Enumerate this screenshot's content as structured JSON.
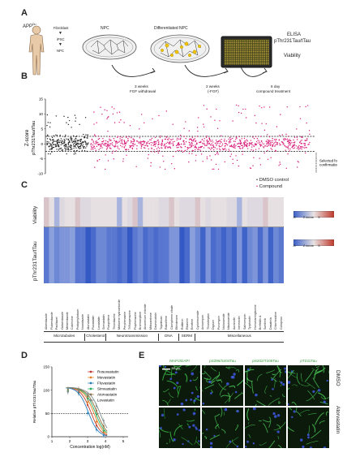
{
  "panels": {
    "A": {
      "label": "A",
      "person_label": "APP",
      "person_sup": "Du",
      "steps": [
        "Fibroblast",
        "iPSC",
        "NPC"
      ],
      "dish1_label": "NPC",
      "dish2_label": "Differentiated NPC",
      "plate_title1": "ELISA",
      "plate_title2": "pThr231Tau/tTau",
      "plate_title3": "Viability",
      "arrow1": [
        "3 weeks",
        "FGF withdrawal"
      ],
      "arrow2": [
        "2 weeks",
        "(-FGF)"
      ],
      "arrow3": [
        "6 day",
        "compound treatment"
      ]
    },
    "B": {
      "label": "B",
      "ylabel1": "Z-score",
      "ylabel2": "pThr231Tau/tTau",
      "yticks": [
        "15",
        "10",
        "5",
        "0",
        "-5",
        "-10"
      ],
      "selected_note": [
        "Selected for",
        "confirmation"
      ]
    },
    "C": {
      "label": "C",
      "legend": [
        {
          "label": "DMSO control",
          "color": "#222222"
        },
        {
          "label": "Compound",
          "color": "#d81b7a"
        }
      ],
      "row1_label": "Viability",
      "row2_label": "pThr231Tau/tTau",
      "scale1": {
        "min": "-5",
        "mid": "Z-score",
        "max": "5"
      },
      "scale2": {
        "min": "-5",
        "mid": "Z-score",
        "max": "5"
      },
      "compounds": [
        "Albendazole",
        "Flubendazole",
        "Paclitaxel",
        "Oxibendazole",
        "Mebendazole",
        "Colchicine",
        "Podophyllotoxin",
        "Nocodazole",
        "Atorvastatin",
        "Fluvastatin",
        "Lovastatin",
        "Simvastatin",
        "Fluspirilene",
        "Thioridazine",
        "Metixene hydrochloride",
        "Perphenazine",
        "Trifluoperazine",
        "Fluphenazine",
        "Bromocriptine",
        "Alcuronium chloride",
        "Mitoxantrone",
        "Daunorubicin",
        "Topotecan",
        "Raloxifene",
        "Clomiphene citrate",
        "Ethisterone",
        "Rottlerin",
        "Ribavirin",
        "Emetine",
        "Cycloheximide",
        "Anisomycin",
        "Thiostrepton",
        "Digoxin",
        "Puromycin",
        "Niclosamide",
        "Nitazoxanide",
        "Auranofin",
        "Ivermectin",
        "Salinomycin",
        "Tyrphostin",
        "Homoharringtonine",
        "Brefeldin A",
        "Sunitinib",
        "Dasatinib",
        "Chlorhexidine",
        "Ciclopirox"
      ],
      "categories": [
        "Microtubules",
        "Cholesterol",
        "Neurotransmission",
        "DNA",
        "SERM",
        "Miscellaneous"
      ]
    },
    "D": {
      "label": "D",
      "ylabel": "Relative pThr231Tau/tTau",
      "xlabel": "Concentration log(nM)",
      "yticks": [
        "150",
        "100",
        "50",
        "0"
      ],
      "xticks": [
        "1",
        "2",
        "3",
        "4",
        "5"
      ],
      "legend": [
        {
          "name": "Rosuvastatin",
          "color": "#c0392b"
        },
        {
          "name": "Mevastatin",
          "color": "#e67e22"
        },
        {
          "name": "Fluvastatin",
          "color": "#2980b9"
        },
        {
          "name": "Simvastatin",
          "color": "#27ae60"
        },
        {
          "name": "Atorvastatin",
          "color": "#8e6e3b"
        },
        {
          "name": "Lovastatin",
          "color": "#7f8c8d"
        }
      ]
    },
    "E": {
      "label": "E",
      "col_labels": [
        "MAP2/DAPI",
        "pS396/S404Tau",
        "pS202/T205Tau",
        "pT231Tau"
      ],
      "row_labels": [
        "DMSO",
        "Atorvastatin"
      ],
      "scalebar": "50 µm"
    }
  },
  "colors": {
    "dmso": "#222222",
    "compound": "#d81b7a",
    "heat_blue": "#3a5fc8",
    "heat_red": "#c0392b",
    "microscopy_bg": "#0b1a0b",
    "microscopy_green": "#3ec84a"
  }
}
